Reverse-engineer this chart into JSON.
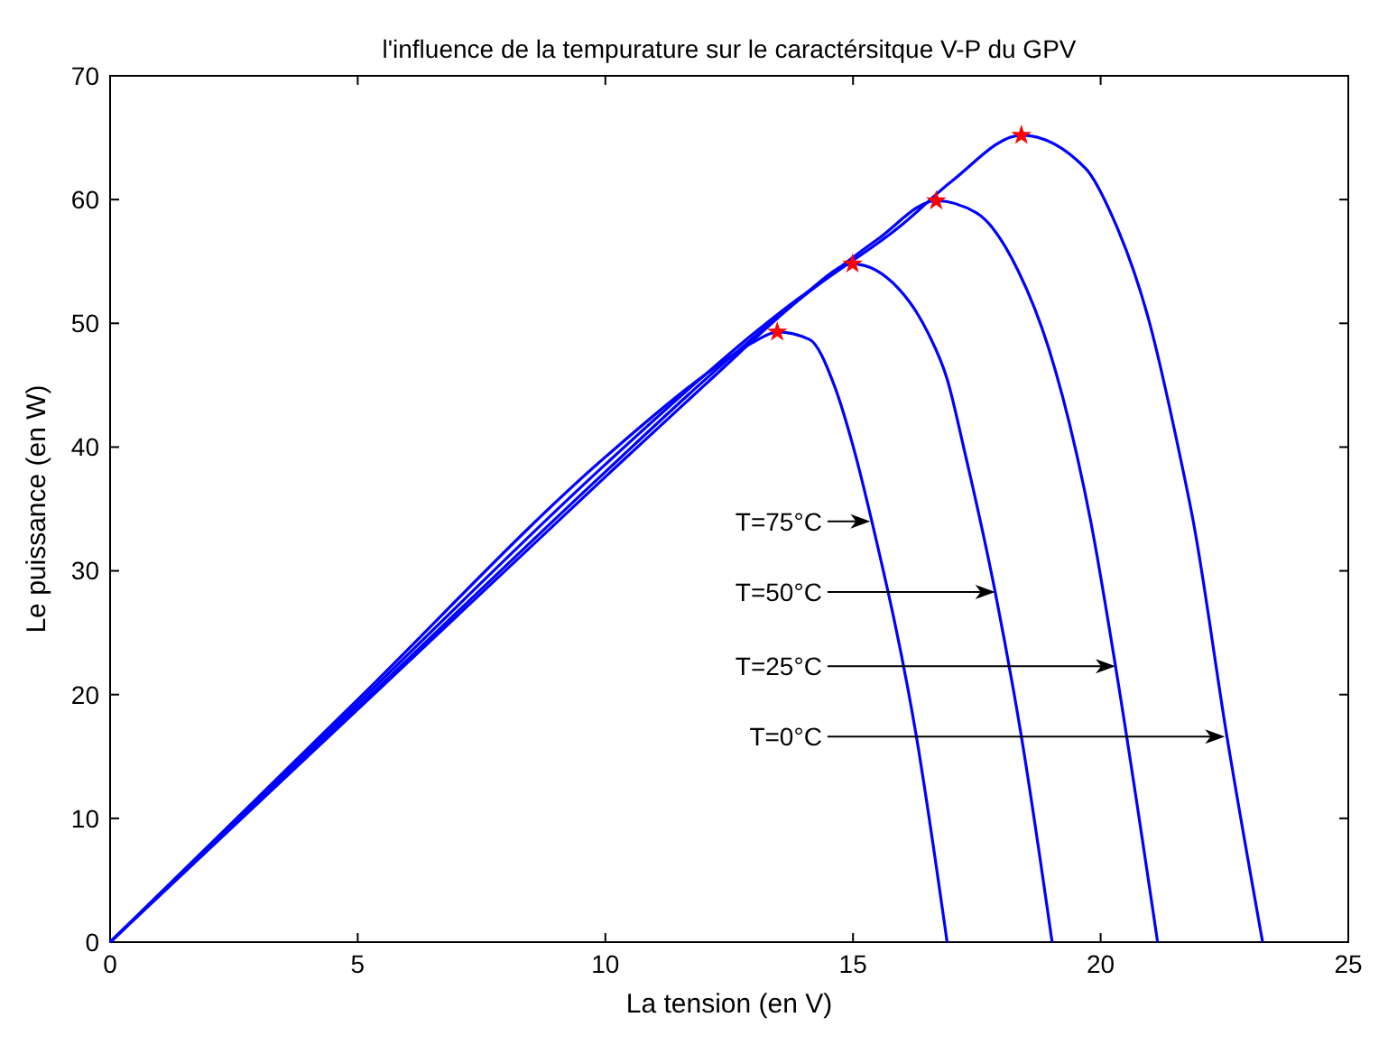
{
  "chart_data": {
    "type": "line",
    "title": "l'influence de la tempurature sur le caractérsitque V-P du  GPV",
    "xlabel": "La tension (en V)",
    "ylabel": "Le puissance (en W)",
    "xlim": [
      0,
      25
    ],
    "xticks": [
      0,
      5,
      10,
      15,
      20,
      25
    ],
    "ylim": [
      0,
      70
    ],
    "yticks": [
      0,
      10,
      20,
      30,
      40,
      50,
      60,
      70
    ],
    "grid": false,
    "line_style": "solid",
    "marker": "none",
    "series": [
      {
        "color": "#0000ff",
        "x": [
          0,
          5,
          10,
          12,
          13,
          13.47,
          14.12,
          14.62,
          15.0,
          15.38,
          16.28,
          16.9
        ],
        "values": [
          0,
          19.6,
          39.2,
          45.8,
          48.5,
          49.3,
          48.7,
          45,
          40.1,
          34,
          16.6,
          0
        ]
      },
      {
        "color": "#0000ff",
        "x": [
          0,
          5,
          10,
          12,
          13,
          14,
          14.99,
          15.92,
          16.53,
          16.9,
          17.25,
          17.87,
          18.4,
          19.02
        ],
        "values": [
          0,
          19.3,
          38.6,
          45.8,
          49.2,
          52.3,
          54.8,
          52.8,
          49.1,
          45.5,
          39.7,
          28.3,
          16.6,
          0
        ]
      },
      {
        "color": "#0000ff",
        "x": [
          0,
          5,
          10,
          12,
          14,
          15.5,
          16.68,
          17.5,
          18.34,
          18.95,
          19.5,
          19.8,
          20.3,
          21.15
        ],
        "values": [
          0,
          19.0,
          38.0,
          45.4,
          52.2,
          56.8,
          59.9,
          58.9,
          54.2,
          48,
          39.7,
          34,
          22.3,
          0
        ]
      },
      {
        "color": "#0000ff",
        "x": [
          0,
          5,
          10,
          12,
          14,
          16,
          17,
          18.4,
          19.7,
          20.24,
          20.97,
          21.58,
          21.87,
          22.55,
          23.27
        ],
        "values": [
          0,
          18.8,
          37.6,
          45.0,
          52.2,
          58.0,
          61.5,
          65.2,
          62.5,
          58.6,
          50.3,
          39.7,
          34,
          16.6,
          0
        ]
      },
      {
        "type": "scatter",
        "color": "#ff0000",
        "marker": "star",
        "x": [
          13.47,
          14.99,
          16.68,
          18.4
        ],
        "values": [
          49.3,
          54.8,
          59.9,
          65.2
        ]
      }
    ],
    "annotations": [
      {
        "text": "T=75°C",
        "x": 15.35,
        "y": 34.0
      },
      {
        "text": "T=50°C",
        "x": 17.87,
        "y": 28.3
      },
      {
        "text": "T=25°C",
        "x": 20.3,
        "y": 22.3
      },
      {
        "text": "T=0°C",
        "x": 22.51,
        "y": 16.6
      }
    ]
  }
}
